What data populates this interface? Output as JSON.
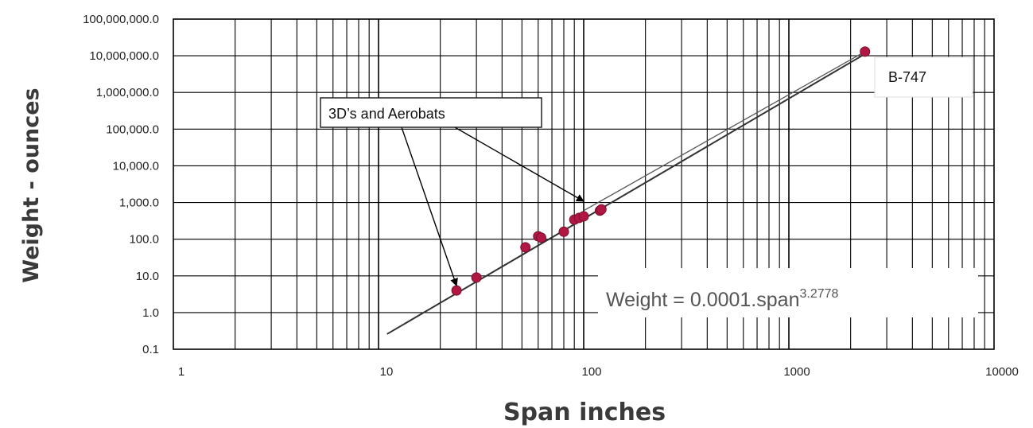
{
  "chart_data": {
    "type": "scatter",
    "title": "",
    "xlabel": "Span inches",
    "ylabel": "Weight - ounces",
    "x_scale": "log",
    "y_scale": "log",
    "xlim": [
      1,
      10000
    ],
    "ylim": [
      0.1,
      100000000
    ],
    "grid": true,
    "x_ticks": [
      "1",
      "10",
      "100",
      "1000",
      "10000"
    ],
    "y_ticks": [
      "0.1",
      "1.0",
      "10.0",
      "100.0",
      "1,000.0",
      "10,000.0",
      "100,000.0",
      "1,000,000.0",
      "10,000,000.0",
      "100,000,000.0"
    ],
    "series": [
      {
        "points": [
          {
            "x": 24,
            "y": 4
          },
          {
            "x": 30,
            "y": 9
          },
          {
            "x": 52,
            "y": 60
          },
          {
            "x": 60,
            "y": 120
          },
          {
            "x": 62,
            "y": 110
          },
          {
            "x": 80,
            "y": 160
          },
          {
            "x": 90,
            "y": 340
          },
          {
            "x": 95,
            "y": 380
          },
          {
            "x": 100,
            "y": 420
          },
          {
            "x": 120,
            "y": 600
          },
          {
            "x": 122,
            "y": 650
          },
          {
            "x": 2350,
            "y": 13000000
          }
        ]
      }
    ],
    "trendline": {
      "coefficient": 0.0001,
      "exponent": 3.2778,
      "x_range": [
        11,
        2400
      ],
      "label": {
        "main": "Weight = 0.0001.span",
        "exponent": "3.2778"
      }
    },
    "secondary_trendline": {
      "x_range": [
        100,
        2350
      ],
      "y_range": [
        600,
        13000000
      ]
    },
    "annotations": [
      {
        "text": "3D’s and Aerobats",
        "arrow_targets": [
          {
            "x": 24,
            "y": 4
          },
          {
            "x": 100,
            "y": 800
          }
        ]
      },
      {
        "text": "B-747"
      }
    ],
    "colors": {
      "marker": "#b01843",
      "line": "#333333",
      "grid": "#000000"
    }
  }
}
